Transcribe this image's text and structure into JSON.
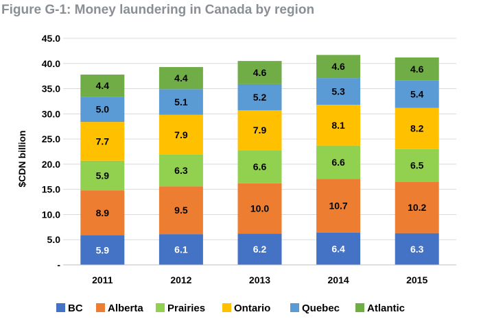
{
  "figure_title": "Figure G-1: Money laundering in Canada by region",
  "chart_data": {
    "type": "bar",
    "stacked": true,
    "title": "Figure G-1: Money laundering in Canada by region",
    "xlabel": "",
    "ylabel": "$CDN billion",
    "ylim": [
      0,
      45
    ],
    "y_ticks": [
      "-",
      "5.0",
      "10.0",
      "15.0",
      "20.0",
      "25.0",
      "30.0",
      "35.0",
      "40.0",
      "45.0"
    ],
    "grid": true,
    "legend_position": "bottom",
    "categories": [
      "2011",
      "2012",
      "2013",
      "2014",
      "2015"
    ],
    "series": [
      {
        "name": "BC",
        "color": "#4472c4",
        "label_color": "#ffffff",
        "values": [
          5.9,
          6.1,
          6.2,
          6.4,
          6.3
        ]
      },
      {
        "name": "Alberta",
        "color": "#ed7d31",
        "label_color": "#000000",
        "values": [
          8.9,
          9.5,
          10.0,
          10.7,
          10.2
        ]
      },
      {
        "name": "Prairies",
        "color": "#92d050",
        "label_color": "#000000",
        "values": [
          5.9,
          6.3,
          6.6,
          6.6,
          6.5
        ]
      },
      {
        "name": "Ontario",
        "color": "#ffc000",
        "label_color": "#000000",
        "values": [
          7.7,
          7.9,
          7.9,
          8.1,
          8.2
        ]
      },
      {
        "name": "Quebec",
        "color": "#5b9bd5",
        "label_color": "#000000",
        "values": [
          5.0,
          5.1,
          5.2,
          5.3,
          5.4
        ]
      },
      {
        "name": "Atlantic",
        "color": "#70ad47",
        "label_color": "#000000",
        "values": [
          4.4,
          4.4,
          4.6,
          4.6,
          4.6
        ]
      }
    ]
  }
}
